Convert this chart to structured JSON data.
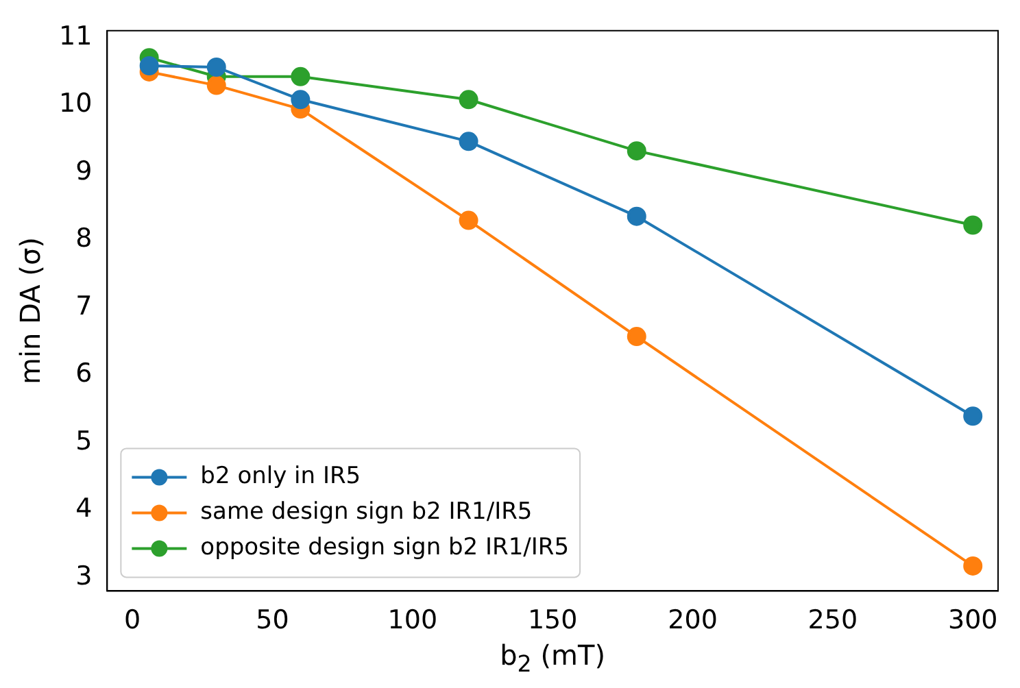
{
  "chart_data": {
    "type": "line",
    "xlabel": "b$_{2}$ (mT)",
    "ylabel": "min DA (σ)",
    "x": [
      6,
      30,
      60,
      120,
      180,
      300
    ],
    "series": [
      {
        "name": "b2 only in IR5",
        "color": "#1f77b4",
        "values": [
          10.58,
          10.56,
          10.08,
          9.46,
          8.35,
          5.39
        ]
      },
      {
        "name": "same design sign b2 IR1/IR5",
        "color": "#ff7f0e",
        "values": [
          10.49,
          10.29,
          9.94,
          8.29,
          6.57,
          3.17
        ]
      },
      {
        "name": "opposite design sign b2 IR1/IR5",
        "color": "#2ca02c",
        "values": [
          10.7,
          10.42,
          10.42,
          10.08,
          9.32,
          8.22
        ]
      }
    ],
    "xlim": [
      -9,
      309
    ],
    "ylim": [
      2.8,
      11.1
    ],
    "xticks": [
      0,
      50,
      100,
      150,
      200,
      250,
      300
    ],
    "yticks": [
      3,
      4,
      5,
      6,
      7,
      8,
      9,
      10,
      11
    ],
    "grid": false,
    "legend": "bottom left",
    "marker": "circle",
    "line_style": "solid"
  }
}
